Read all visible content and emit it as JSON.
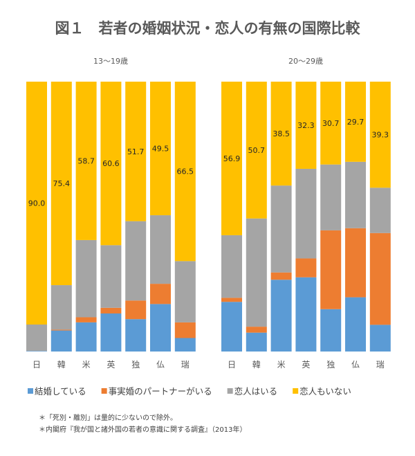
{
  "chart_data": [
    {
      "type": "stacked-bar",
      "title": "図１　若者の婚姻状況・恋人の有無の国際比較",
      "subtitle": "13〜19歳",
      "categories": [
        "日",
        "韓",
        "米",
        "英",
        "独",
        "仏",
        "瑞"
      ],
      "ylim": [
        0,
        100
      ],
      "series": [
        {
          "name": "結婚している",
          "color": "#5B9BD5",
          "values": [
            0.2,
            7.8,
            10.8,
            14.1,
            12.0,
            17.6,
            5.0
          ]
        },
        {
          "name": "事実婚のパートナーがいる",
          "color": "#ED7D31",
          "values": [
            0.0,
            0.3,
            1.9,
            2.1,
            6.9,
            7.5,
            5.8
          ]
        },
        {
          "name": "恋人はいる",
          "color": "#A5A5A5",
          "values": [
            9.8,
            16.5,
            28.6,
            23.2,
            29.4,
            25.4,
            22.7
          ]
        },
        {
          "name": "恋人もいない",
          "color": "#FFC000",
          "values": [
            90.0,
            75.4,
            58.7,
            60.6,
            51.7,
            49.5,
            66.5
          ],
          "labels": [
            "90.0",
            "75.4",
            "58.7",
            "60.6",
            "51.7",
            "49.5",
            "66.5"
          ]
        }
      ]
    },
    {
      "type": "stacked-bar",
      "subtitle": "20〜29歳",
      "categories": [
        "日",
        "韓",
        "米",
        "英",
        "独",
        "仏",
        "瑞"
      ],
      "ylim": [
        0,
        100
      ],
      "series": [
        {
          "name": "結婚している",
          "color": "#5B9BD5",
          "values": [
            18.4,
            7.0,
            26.6,
            27.5,
            15.7,
            20.1,
            9.9
          ]
        },
        {
          "name": "事実婚のパートナーがいる",
          "color": "#ED7D31",
          "values": [
            1.5,
            2.2,
            2.7,
            7.0,
            29.2,
            25.6,
            34.0
          ]
        },
        {
          "name": "恋人はいる",
          "color": "#A5A5A5",
          "values": [
            23.2,
            40.1,
            32.2,
            33.2,
            24.4,
            24.6,
            16.8
          ]
        },
        {
          "name": "恋人もいない",
          "color": "#FFC000",
          "values": [
            56.9,
            50.7,
            38.5,
            32.3,
            30.7,
            29.7,
            39.3
          ],
          "labels": [
            "56.9",
            "50.7",
            "38.5",
            "32.3",
            "30.7",
            "29.7",
            "39.3"
          ]
        }
      ]
    }
  ],
  "legend": [
    "結婚している",
    "事実婚のパートナーがいる",
    "恋人はいる",
    "恋人もいない"
  ],
  "notes": [
    "＊「死別・離別」は量的に少ないので除外。",
    "＊内閣府『我が国と諸外国の若者の意識に関する調査』（2013年）"
  ]
}
